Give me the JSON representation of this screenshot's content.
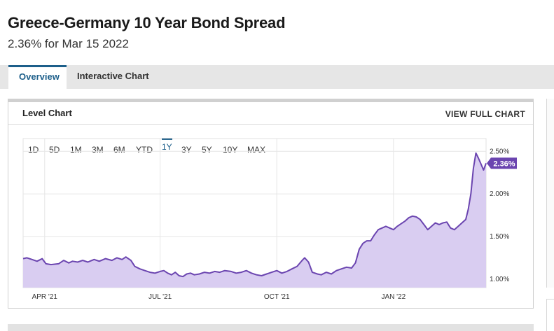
{
  "header": {
    "title": "Greece-Germany 10 Year Bond Spread",
    "subtitle": "2.36% for Mar 15 2022"
  },
  "tabs": [
    {
      "label": "Overview",
      "active": true
    },
    {
      "label": "Interactive Chart",
      "active": false
    }
  ],
  "card": {
    "title": "Level Chart",
    "link": "VIEW FULL CHART"
  },
  "ranges": [
    "1D",
    "5D",
    "1M",
    "3M",
    "6M",
    "YTD",
    "1Y",
    "3Y",
    "5Y",
    "10Y",
    "MAX"
  ],
  "active_range": "1Y",
  "colors": {
    "line": "#6b45b0",
    "fill": "#d9cdf1",
    "accent": "#1d5f8a",
    "badge": "#6b45b0"
  },
  "chart_data": {
    "type": "area",
    "y_unit": "%",
    "ylim": [
      0.9,
      2.65
    ],
    "yticks": [
      {
        "value": 1.0,
        "label": "1.00%"
      },
      {
        "value": 1.5,
        "label": "1.50%"
      },
      {
        "value": 2.0,
        "label": "2.00%"
      },
      {
        "value": 2.5,
        "label": "2.50%"
      }
    ],
    "x_start": "2021-03-15",
    "x_end": "2022-03-15",
    "xticks": [
      {
        "date": "2021-04-01",
        "label": "APR '21"
      },
      {
        "date": "2021-07-01",
        "label": "JUL '21"
      },
      {
        "date": "2021-10-01",
        "label": "OCT '21"
      },
      {
        "date": "2022-01-01",
        "label": "JAN '22"
      }
    ],
    "grid": true,
    "last_value_label": "2.36%",
    "series": [
      {
        "points": [
          [
            "2021-03-15",
            1.24
          ],
          [
            "2021-03-18",
            1.25
          ],
          [
            "2021-03-22",
            1.23
          ],
          [
            "2021-03-26",
            1.21
          ],
          [
            "2021-03-30",
            1.24
          ],
          [
            "2021-04-02",
            1.18
          ],
          [
            "2021-04-06",
            1.17
          ],
          [
            "2021-04-12",
            1.18
          ],
          [
            "2021-04-16",
            1.22
          ],
          [
            "2021-04-20",
            1.19
          ],
          [
            "2021-04-23",
            1.21
          ],
          [
            "2021-04-27",
            1.2
          ],
          [
            "2021-05-01",
            1.22
          ],
          [
            "2021-05-05",
            1.2
          ],
          [
            "2021-05-10",
            1.23
          ],
          [
            "2021-05-14",
            1.21
          ],
          [
            "2021-05-19",
            1.24
          ],
          [
            "2021-05-24",
            1.22
          ],
          [
            "2021-05-28",
            1.25
          ],
          [
            "2021-06-01",
            1.23
          ],
          [
            "2021-06-04",
            1.26
          ],
          [
            "2021-06-08",
            1.22
          ],
          [
            "2021-06-11",
            1.15
          ],
          [
            "2021-06-15",
            1.12
          ],
          [
            "2021-06-19",
            1.1
          ],
          [
            "2021-06-23",
            1.08
          ],
          [
            "2021-06-27",
            1.07
          ],
          [
            "2021-07-01",
            1.09
          ],
          [
            "2021-07-04",
            1.1
          ],
          [
            "2021-07-07",
            1.07
          ],
          [
            "2021-07-10",
            1.05
          ],
          [
            "2021-07-13",
            1.08
          ],
          [
            "2021-07-16",
            1.04
          ],
          [
            "2021-07-19",
            1.03
          ],
          [
            "2021-07-22",
            1.06
          ],
          [
            "2021-07-25",
            1.07
          ],
          [
            "2021-07-28",
            1.05
          ],
          [
            "2021-08-01",
            1.06
          ],
          [
            "2021-08-05",
            1.08
          ],
          [
            "2021-08-09",
            1.07
          ],
          [
            "2021-08-13",
            1.09
          ],
          [
            "2021-08-17",
            1.08
          ],
          [
            "2021-08-21",
            1.1
          ],
          [
            "2021-08-26",
            1.09
          ],
          [
            "2021-08-30",
            1.07
          ],
          [
            "2021-09-03",
            1.08
          ],
          [
            "2021-09-07",
            1.1
          ],
          [
            "2021-09-11",
            1.07
          ],
          [
            "2021-09-15",
            1.05
          ],
          [
            "2021-09-19",
            1.04
          ],
          [
            "2021-09-23",
            1.06
          ],
          [
            "2021-09-27",
            1.08
          ],
          [
            "2021-10-01",
            1.1
          ],
          [
            "2021-10-05",
            1.07
          ],
          [
            "2021-10-09",
            1.09
          ],
          [
            "2021-10-13",
            1.12
          ],
          [
            "2021-10-17",
            1.15
          ],
          [
            "2021-10-21",
            1.22
          ],
          [
            "2021-10-23",
            1.25
          ],
          [
            "2021-10-26",
            1.2
          ],
          [
            "2021-10-29",
            1.08
          ],
          [
            "2021-11-02",
            1.06
          ],
          [
            "2021-11-05",
            1.05
          ],
          [
            "2021-11-09",
            1.08
          ],
          [
            "2021-11-13",
            1.06
          ],
          [
            "2021-11-17",
            1.1
          ],
          [
            "2021-11-21",
            1.12
          ],
          [
            "2021-11-25",
            1.14
          ],
          [
            "2021-11-29",
            1.13
          ],
          [
            "2021-12-02",
            1.19
          ],
          [
            "2021-12-05",
            1.35
          ],
          [
            "2021-12-08",
            1.42
          ],
          [
            "2021-12-11",
            1.45
          ],
          [
            "2021-12-14",
            1.45
          ],
          [
            "2021-12-17",
            1.52
          ],
          [
            "2021-12-20",
            1.58
          ],
          [
            "2021-12-23",
            1.6
          ],
          [
            "2021-12-26",
            1.62
          ],
          [
            "2021-12-29",
            1.6
          ],
          [
            "2022-01-01",
            1.58
          ],
          [
            "2022-01-04",
            1.62
          ],
          [
            "2022-01-07",
            1.65
          ],
          [
            "2022-01-10",
            1.68
          ],
          [
            "2022-01-13",
            1.72
          ],
          [
            "2022-01-16",
            1.74
          ],
          [
            "2022-01-19",
            1.73
          ],
          [
            "2022-01-22",
            1.7
          ],
          [
            "2022-01-25",
            1.64
          ],
          [
            "2022-01-28",
            1.58
          ],
          [
            "2022-01-31",
            1.62
          ],
          [
            "2022-02-03",
            1.66
          ],
          [
            "2022-02-06",
            1.64
          ],
          [
            "2022-02-09",
            1.66
          ],
          [
            "2022-02-12",
            1.67
          ],
          [
            "2022-02-15",
            1.6
          ],
          [
            "2022-02-18",
            1.58
          ],
          [
            "2022-02-21",
            1.62
          ],
          [
            "2022-02-24",
            1.66
          ],
          [
            "2022-02-27",
            1.7
          ],
          [
            "2022-03-01",
            1.82
          ],
          [
            "2022-03-03",
            2.0
          ],
          [
            "2022-03-05",
            2.3
          ],
          [
            "2022-03-07",
            2.48
          ],
          [
            "2022-03-09",
            2.42
          ],
          [
            "2022-03-11",
            2.35
          ],
          [
            "2022-03-13",
            2.28
          ],
          [
            "2022-03-15",
            2.36
          ]
        ]
      }
    ]
  }
}
